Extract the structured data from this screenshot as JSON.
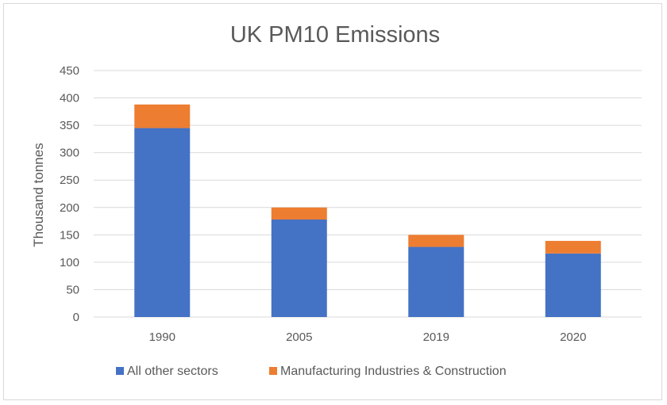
{
  "chart_data": {
    "type": "bar",
    "stacked": true,
    "title": "UK PM10 Emissions",
    "xlabel": "",
    "ylabel": "Thousand tonnes",
    "categories": [
      "1990",
      "2005",
      "2019",
      "2020"
    ],
    "series": [
      {
        "name": "All other sectors",
        "color": "#4472c4",
        "values": [
          345,
          178,
          128,
          116
        ]
      },
      {
        "name": "Manufacturing Industries & Construction",
        "color": "#ed7d31",
        "values": [
          43,
          22,
          22,
          23
        ]
      }
    ],
    "ylim": [
      0,
      450
    ],
    "yticks": [
      "0",
      "50",
      "100",
      "150",
      "200",
      "250",
      "300",
      "350",
      "400",
      "450"
    ],
    "grid": true,
    "legend_position": "bottom"
  }
}
